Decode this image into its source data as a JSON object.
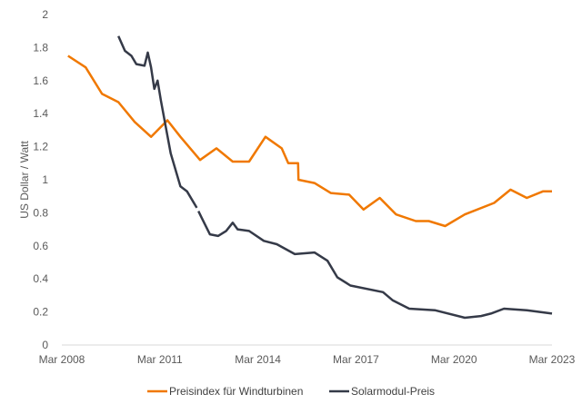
{
  "chart_data": {
    "type": "line",
    "title": "",
    "xlabel": "",
    "ylabel": "US Dollar / Watt",
    "xlim": [
      2008.17,
      2023.17
    ],
    "ylim": [
      0,
      2
    ],
    "x_ticks": [
      {
        "value": 2008.17,
        "label": "Mar 2008"
      },
      {
        "value": 2011.17,
        "label": "Mar 2011"
      },
      {
        "value": 2014.17,
        "label": "Mar 2014"
      },
      {
        "value": 2017.17,
        "label": "Mar 2017"
      },
      {
        "value": 2020.17,
        "label": "Mar 2020"
      },
      {
        "value": 2023.17,
        "label": "Mar 2023"
      }
    ],
    "y_ticks": [
      {
        "value": 0,
        "label": "0"
      },
      {
        "value": 0.2,
        "label": "0.2"
      },
      {
        "value": 0.4,
        "label": "0.4"
      },
      {
        "value": 0.6,
        "label": "0.6"
      },
      {
        "value": 0.8,
        "label": "0.8"
      },
      {
        "value": 1.0,
        "label": "1"
      },
      {
        "value": 1.2,
        "label": "1.2"
      },
      {
        "value": 1.4,
        "label": "1.4"
      },
      {
        "value": 1.6,
        "label": "1.6"
      },
      {
        "value": 1.8,
        "label": "1.8"
      },
      {
        "value": 2.0,
        "label": "2"
      }
    ],
    "grid": false,
    "legend_position": "bottom",
    "series": [
      {
        "name": "Preisindex für Windturbinen",
        "color": "#F07800",
        "points": [
          [
            2008.36,
            1.75
          ],
          [
            2008.9,
            1.68
          ],
          [
            2009.4,
            1.52
          ],
          [
            2009.9,
            1.47
          ],
          [
            2010.4,
            1.35
          ],
          [
            2010.9,
            1.26
          ],
          [
            2011.4,
            1.36
          ],
          [
            2011.8,
            1.26
          ],
          [
            2012.4,
            1.12
          ],
          [
            2012.9,
            1.19
          ],
          [
            2013.4,
            1.11
          ],
          [
            2013.9,
            1.11
          ],
          [
            2014.4,
            1.26
          ],
          [
            2014.9,
            1.19
          ],
          [
            2015.1,
            1.1
          ],
          [
            2015.4,
            1.1
          ],
          [
            2015.41,
            1.0
          ],
          [
            2015.9,
            0.98
          ],
          [
            2016.4,
            0.92
          ],
          [
            2016.96,
            0.91
          ],
          [
            2017.4,
            0.82
          ],
          [
            2017.9,
            0.89
          ],
          [
            2018.4,
            0.79
          ],
          [
            2019.0,
            0.75
          ],
          [
            2019.4,
            0.75
          ],
          [
            2019.9,
            0.72
          ],
          [
            2020.5,
            0.79
          ],
          [
            2021.4,
            0.86
          ],
          [
            2021.9,
            0.94
          ],
          [
            2022.4,
            0.89
          ],
          [
            2022.9,
            0.93
          ],
          [
            2023.17,
            0.93
          ]
        ]
      },
      {
        "name": "Solarmodul-Preis",
        "color": "#353A48",
        "points": [
          [
            2009.9,
            1.87
          ],
          [
            2010.1,
            1.78
          ],
          [
            2010.3,
            1.75
          ],
          [
            2010.45,
            1.7
          ],
          [
            2010.7,
            1.69
          ],
          [
            2010.8,
            1.77
          ],
          [
            2010.9,
            1.68
          ],
          [
            2011.0,
            1.55
          ],
          [
            2011.1,
            1.6
          ],
          [
            2011.2,
            1.48
          ],
          [
            2011.35,
            1.32
          ],
          [
            2011.5,
            1.16
          ],
          [
            2011.8,
            0.96
          ],
          [
            2012.0,
            0.93
          ],
          [
            2012.3,
            0.83
          ],
          null,
          [
            2012.35,
            0.81
          ],
          [
            2012.45,
            0.77
          ],
          [
            2012.7,
            0.67
          ],
          [
            2012.95,
            0.66
          ],
          [
            2013.2,
            0.69
          ],
          [
            2013.4,
            0.74
          ],
          [
            2013.55,
            0.7
          ],
          [
            2013.9,
            0.69
          ],
          [
            2014.35,
            0.63
          ],
          [
            2014.75,
            0.61
          ],
          [
            2015.3,
            0.55
          ],
          [
            2015.9,
            0.56
          ],
          [
            2016.3,
            0.51
          ],
          [
            2016.6,
            0.41
          ],
          [
            2017.0,
            0.36
          ],
          [
            2018.0,
            0.32
          ],
          [
            2018.3,
            0.27
          ],
          [
            2018.8,
            0.22
          ],
          [
            2019.6,
            0.21
          ],
          [
            2020.5,
            0.165
          ],
          [
            2021.0,
            0.175
          ],
          [
            2021.3,
            0.19
          ],
          [
            2021.7,
            0.22
          ],
          [
            2022.4,
            0.21
          ],
          [
            2022.8,
            0.2
          ],
          [
            2023.17,
            0.19
          ]
        ]
      }
    ]
  }
}
